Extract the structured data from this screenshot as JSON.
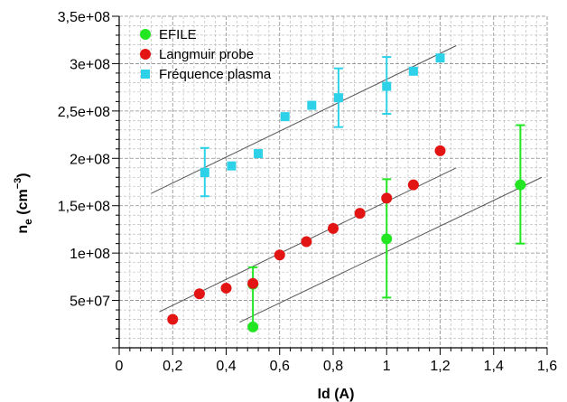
{
  "chart_data": {
    "type": "scatter",
    "xlabel": "Id (A)",
    "ylabel": {
      "main": "n",
      "sub": "e",
      "unit_open": " (cm",
      "unit_sup": "−3",
      "unit_close": ")"
    },
    "xlim": [
      0,
      1.6
    ],
    "ylim": [
      0,
      350000000
    ],
    "x_ticks": [
      0,
      0.2,
      0.4,
      0.6,
      0.8,
      1,
      1.2,
      1.4,
      1.6
    ],
    "x_tick_labels": [
      "0",
      "0,2",
      "0,4",
      "0,6",
      "0,8",
      "1",
      "1,2",
      "1,4",
      "1,6"
    ],
    "y_ticks": [
      50000000,
      100000000,
      150000000,
      200000000,
      250000000,
      300000000,
      350000000
    ],
    "y_tick_labels": [
      "5e+07",
      "1e+08",
      "1,5e+08",
      "2e+08",
      "2,5e+08",
      "3e+08",
      "3,5e+08"
    ],
    "grid": true,
    "legend_position": "top-left",
    "series": [
      {
        "name": "EFILE",
        "color": "#22e622",
        "marker": "circle",
        "points": [
          {
            "x": 0.5,
            "y": 22000000,
            "err_low": null,
            "err_high": null
          },
          {
            "x": 0.5,
            "y": 67000000,
            "err_low": 20000000,
            "err_high": 85000000
          },
          {
            "x": 1.0,
            "y": 115000000,
            "err_low": 53000000,
            "err_high": 178000000
          },
          {
            "x": 1.5,
            "y": 172000000,
            "err_low": 110000000,
            "err_high": 235000000
          }
        ],
        "fit": {
          "x": [
            0.45,
            1.58
          ],
          "y": [
            27000000,
            180000000
          ]
        }
      },
      {
        "name": "Langmuir probe",
        "color": "#e31414",
        "marker": "circle",
        "points": [
          {
            "x": 0.2,
            "y": 30000000
          },
          {
            "x": 0.3,
            "y": 57000000
          },
          {
            "x": 0.4,
            "y": 63000000
          },
          {
            "x": 0.5,
            "y": 68000000
          },
          {
            "x": 0.6,
            "y": 98000000
          },
          {
            "x": 0.7,
            "y": 112000000
          },
          {
            "x": 0.8,
            "y": 126000000
          },
          {
            "x": 0.9,
            "y": 142000000
          },
          {
            "x": 1.0,
            "y": 158000000
          },
          {
            "x": 1.1,
            "y": 172000000
          },
          {
            "x": 1.2,
            "y": 208000000
          }
        ],
        "fit": {
          "x": [
            0.15,
            1.26
          ],
          "y": [
            38000000,
            190000000
          ]
        }
      },
      {
        "name": "Fréquence plasma",
        "color": "#2ed2e8",
        "marker": "square",
        "points": [
          {
            "x": 0.32,
            "y": 185000000,
            "err_low": 160000000,
            "err_high": 211000000
          },
          {
            "x": 0.42,
            "y": 192000000
          },
          {
            "x": 0.52,
            "y": 205000000
          },
          {
            "x": 0.62,
            "y": 244000000
          },
          {
            "x": 0.72,
            "y": 256000000
          },
          {
            "x": 0.82,
            "y": 264000000,
            "err_low": 233000000,
            "err_high": 295000000
          },
          {
            "x": 1.0,
            "y": 276000000,
            "err_low": 247000000,
            "err_high": 307000000
          },
          {
            "x": 1.1,
            "y": 292000000
          },
          {
            "x": 1.2,
            "y": 306000000
          }
        ],
        "fit": {
          "x": [
            0.12,
            1.26
          ],
          "y": [
            163000000,
            319000000
          ]
        }
      }
    ]
  }
}
